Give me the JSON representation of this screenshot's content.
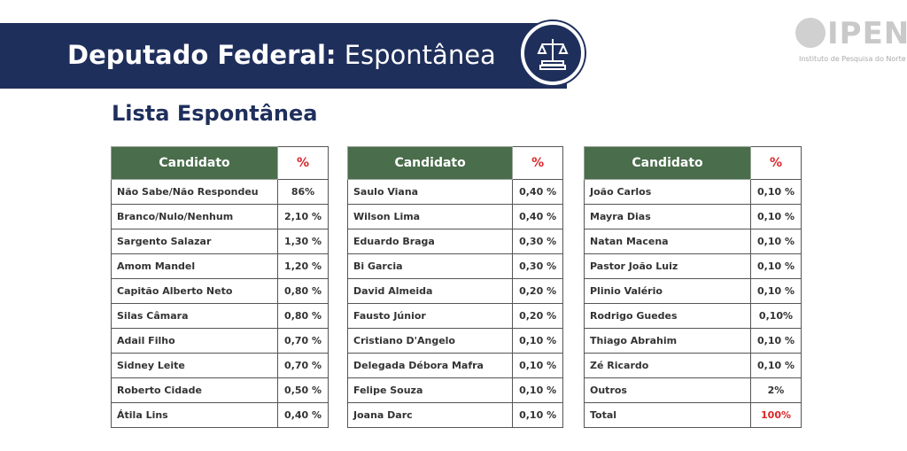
{
  "header": {
    "title_bold": "Deputado Federal:",
    "title_rest": " Espontânea"
  },
  "logo": {
    "wordmark": "IPEN",
    "subtitle": "Instituto de Pesquisa do Norte"
  },
  "section_title": "Lista Espontânea",
  "colors": {
    "banner": "#1f2f5c",
    "header_green": "#4a6d4c",
    "pct_red": "#d9262a"
  },
  "tables": [
    {
      "col_name": "Candidato",
      "col_pct": "%",
      "rows": [
        {
          "name": "Não Sabe/Não Respondeu",
          "pct": "86%"
        },
        {
          "name": "Branco/Nulo/Nenhum",
          "pct": "2,10 %"
        },
        {
          "name": "Sargento Salazar",
          "pct": "1,30 %"
        },
        {
          "name": "Amom Mandel",
          "pct": "1,20 %"
        },
        {
          "name": "Capitão Alberto Neto",
          "pct": "0,80 %"
        },
        {
          "name": "Silas Câmara",
          "pct": "0,80 %"
        },
        {
          "name": "Adail Filho",
          "pct": "0,70 %"
        },
        {
          "name": "Sidney Leite",
          "pct": "0,70 %"
        },
        {
          "name": "Roberto Cidade",
          "pct": "0,50 %"
        },
        {
          "name": "Átila Lins",
          "pct": "0,40 %"
        }
      ]
    },
    {
      "col_name": "Candidato",
      "col_pct": "%",
      "rows": [
        {
          "name": "Saulo Viana",
          "pct": "0,40 %"
        },
        {
          "name": "Wilson Lima",
          "pct": "0,40 %"
        },
        {
          "name": "Eduardo Braga",
          "pct": "0,30 %"
        },
        {
          "name": "Bi Garcia",
          "pct": "0,30 %"
        },
        {
          "name": "David Almeida",
          "pct": "0,20 %"
        },
        {
          "name": "Fausto Júnior",
          "pct": "0,20 %"
        },
        {
          "name": "Cristiano D'Angelo",
          "pct": "0,10 %"
        },
        {
          "name": "Delegada Débora Mafra",
          "pct": "0,10 %"
        },
        {
          "name": "Felipe Souza",
          "pct": "0,10 %"
        },
        {
          "name": "Joana Darc",
          "pct": "0,10 %"
        }
      ]
    },
    {
      "col_name": "Candidato",
      "col_pct": "%",
      "rows": [
        {
          "name": "João Carlos",
          "pct": "0,10 %"
        },
        {
          "name": "Mayra Dias",
          "pct": "0,10 %"
        },
        {
          "name": "Natan Macena",
          "pct": "0,10 %"
        },
        {
          "name": "Pastor João Luiz",
          "pct": "0,10 %"
        },
        {
          "name": "Plinio Valério",
          "pct": "0,10 %"
        },
        {
          "name": "Rodrigo Guedes",
          "pct": "0,10%"
        },
        {
          "name": "Thiago Abrahim",
          "pct": "0,10 %"
        },
        {
          "name": "Zé Ricardo",
          "pct": "0,10 %"
        },
        {
          "name": "Outros",
          "pct": "2%"
        },
        {
          "name": "Total",
          "pct": "100%"
        }
      ]
    }
  ]
}
